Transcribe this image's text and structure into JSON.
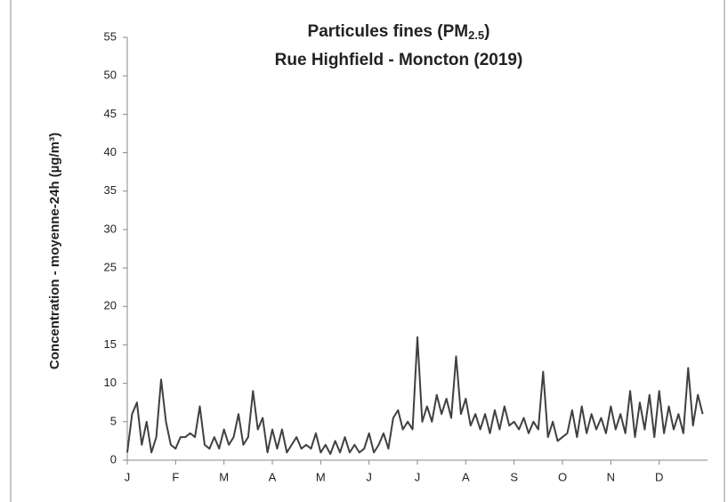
{
  "chart_data": {
    "type": "line",
    "title": "Particules fines (PM",
    "title_subscript": "2.5",
    "title_suffix": ")",
    "subtitle": "Rue Highfield - Moncton (2019)",
    "y_label": "Concentration - moyenne-24h (µg/m³)",
    "categories": [
      "J",
      null,
      null,
      null,
      null,
      null,
      null,
      null,
      null,
      null,
      "F",
      null,
      null,
      null,
      null,
      null,
      null,
      null,
      null,
      null,
      "M",
      null,
      null,
      null,
      null,
      null,
      null,
      null,
      null,
      null,
      "A",
      null,
      null,
      null,
      null,
      null,
      null,
      null,
      null,
      null,
      "M",
      null,
      null,
      null,
      null,
      null,
      null,
      null,
      null,
      null,
      "J",
      null,
      null,
      null,
      null,
      null,
      null,
      null,
      null,
      null,
      "J",
      null,
      null,
      null,
      null,
      null,
      null,
      null,
      null,
      null,
      "A",
      null,
      null,
      null,
      null,
      null,
      null,
      null,
      null,
      null,
      "S",
      null,
      null,
      null,
      null,
      null,
      null,
      null,
      null,
      null,
      "O",
      null,
      null,
      null,
      null,
      null,
      null,
      null,
      null,
      null,
      "N",
      null,
      null,
      null,
      null,
      null,
      null,
      null,
      null,
      null,
      "D",
      null,
      null,
      null,
      null,
      null,
      null,
      null,
      null,
      null
    ],
    "series": [
      {
        "name": "PM2.5",
        "color": "#404040",
        "values": [
          1,
          6,
          7.5,
          2,
          5,
          1,
          3,
          10.5,
          5,
          2,
          1.5,
          3,
          3,
          3.5,
          3,
          7,
          2,
          1.5,
          3,
          1.5,
          4,
          2,
          3,
          6,
          2,
          3,
          9,
          4,
          5.5,
          1,
          4,
          1.5,
          4,
          1,
          2,
          3,
          1.5,
          2,
          1.5,
          3.5,
          1,
          2,
          0.8,
          2.5,
          1,
          3,
          1,
          2,
          1,
          1.5,
          3.5,
          1,
          2,
          3.5,
          1.5,
          5.5,
          6.5,
          4,
          5,
          4,
          16,
          5,
          7,
          5,
          8.5,
          6,
          8,
          5.5,
          13.5,
          6,
          8,
          4.5,
          6,
          4,
          6,
          3.5,
          6.5,
          4,
          7,
          4.5,
          5,
          4,
          5.5,
          3.5,
          5,
          4,
          11.5,
          3,
          5,
          2.5,
          3,
          3.5,
          6.5,
          3,
          7,
          3.5,
          6,
          4,
          5.5,
          3.5,
          7,
          4,
          6,
          3.5,
          9,
          3,
          7.5,
          4,
          8.5,
          3,
          9,
          3.5,
          7,
          4,
          6,
          3.5,
          12,
          4.5,
          8.5,
          6
        ]
      }
    ],
    "ylim": [
      0,
      55
    ],
    "yticks": [
      0,
      5,
      10,
      15,
      20,
      25,
      30,
      35,
      40,
      45,
      50,
      55
    ],
    "grid": false
  }
}
